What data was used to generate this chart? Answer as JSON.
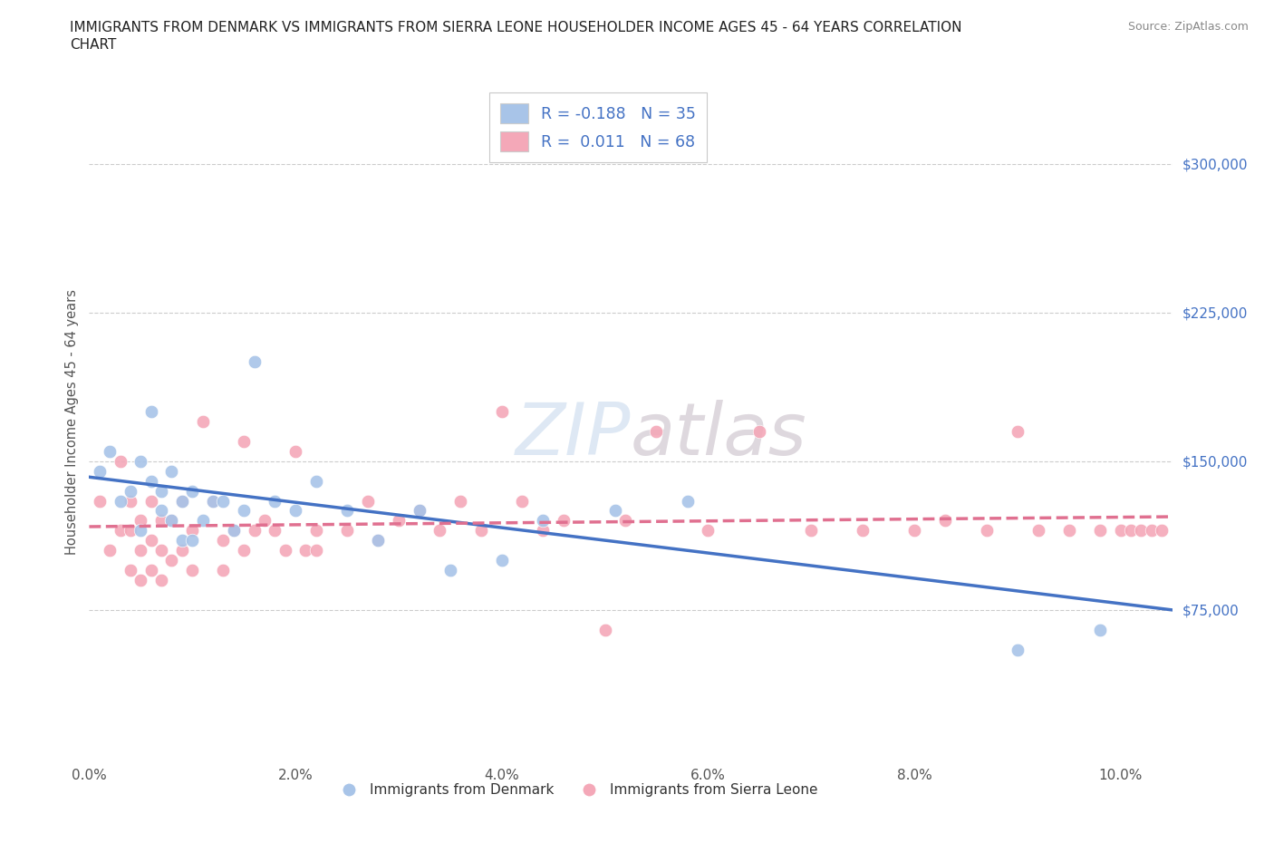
{
  "title_line1": "IMMIGRANTS FROM DENMARK VS IMMIGRANTS FROM SIERRA LEONE HOUSEHOLDER INCOME AGES 45 - 64 YEARS CORRELATION",
  "title_line2": "CHART",
  "source": "Source: ZipAtlas.com",
  "ylabel": "Householder Income Ages 45 - 64 years",
  "xlim": [
    0.0,
    0.105
  ],
  "ylim": [
    0,
    340000
  ],
  "xticks": [
    0.0,
    0.02,
    0.04,
    0.06,
    0.08,
    0.1
  ],
  "xticklabels": [
    "0.0%",
    "2.0%",
    "4.0%",
    "6.0%",
    "8.0%",
    "10.0%"
  ],
  "yticks": [
    75000,
    150000,
    225000,
    300000
  ],
  "yticklabels": [
    "$75,000",
    "$150,000",
    "$225,000",
    "$300,000"
  ],
  "denmark_color": "#a8c4e8",
  "sierra_leone_color": "#f4a8b8",
  "denmark_line_color": "#4472c4",
  "sierra_leone_line_color": "#e07090",
  "watermark_text": "ZIPatlas",
  "legend_label1": "R = -0.188   N = 35",
  "legend_label2": "R =  0.011   N = 68",
  "denmark_x": [
    0.001,
    0.002,
    0.003,
    0.004,
    0.005,
    0.005,
    0.006,
    0.006,
    0.007,
    0.007,
    0.008,
    0.008,
    0.009,
    0.009,
    0.01,
    0.01,
    0.011,
    0.012,
    0.013,
    0.014,
    0.015,
    0.016,
    0.018,
    0.02,
    0.022,
    0.025,
    0.028,
    0.032,
    0.035,
    0.04,
    0.044,
    0.051,
    0.058,
    0.09,
    0.098
  ],
  "denmark_y": [
    145000,
    155000,
    130000,
    135000,
    150000,
    115000,
    140000,
    175000,
    135000,
    125000,
    120000,
    145000,
    110000,
    130000,
    110000,
    135000,
    120000,
    130000,
    130000,
    115000,
    125000,
    200000,
    130000,
    125000,
    140000,
    125000,
    110000,
    125000,
    95000,
    100000,
    120000,
    125000,
    130000,
    55000,
    65000
  ],
  "sierra_leone_x": [
    0.001,
    0.002,
    0.003,
    0.003,
    0.004,
    0.004,
    0.004,
    0.005,
    0.005,
    0.005,
    0.006,
    0.006,
    0.006,
    0.007,
    0.007,
    0.007,
    0.008,
    0.008,
    0.009,
    0.009,
    0.01,
    0.01,
    0.011,
    0.012,
    0.013,
    0.013,
    0.014,
    0.015,
    0.015,
    0.016,
    0.017,
    0.018,
    0.019,
    0.02,
    0.021,
    0.022,
    0.022,
    0.025,
    0.027,
    0.028,
    0.03,
    0.032,
    0.034,
    0.036,
    0.038,
    0.04,
    0.042,
    0.044,
    0.046,
    0.05,
    0.052,
    0.055,
    0.06,
    0.065,
    0.07,
    0.075,
    0.08,
    0.083,
    0.087,
    0.09,
    0.092,
    0.095,
    0.098,
    0.1,
    0.101,
    0.102,
    0.103,
    0.104
  ],
  "sierra_leone_y": [
    130000,
    105000,
    150000,
    115000,
    130000,
    115000,
    95000,
    120000,
    105000,
    90000,
    130000,
    110000,
    95000,
    120000,
    105000,
    90000,
    120000,
    100000,
    130000,
    105000,
    115000,
    95000,
    170000,
    130000,
    110000,
    95000,
    115000,
    105000,
    160000,
    115000,
    120000,
    115000,
    105000,
    155000,
    105000,
    115000,
    105000,
    115000,
    130000,
    110000,
    120000,
    125000,
    115000,
    130000,
    115000,
    175000,
    130000,
    115000,
    120000,
    65000,
    120000,
    165000,
    115000,
    165000,
    115000,
    115000,
    115000,
    120000,
    115000,
    165000,
    115000,
    115000,
    115000,
    115000,
    115000,
    115000,
    115000,
    115000
  ],
  "dk_trendline_x0": 0.0,
  "dk_trendline_y0": 142000,
  "dk_trendline_x1": 0.105,
  "dk_trendline_y1": 75000,
  "sl_trendline_x0": 0.0,
  "sl_trendline_y0": 117000,
  "sl_trendline_x1": 0.105,
  "sl_trendline_y1": 122000
}
